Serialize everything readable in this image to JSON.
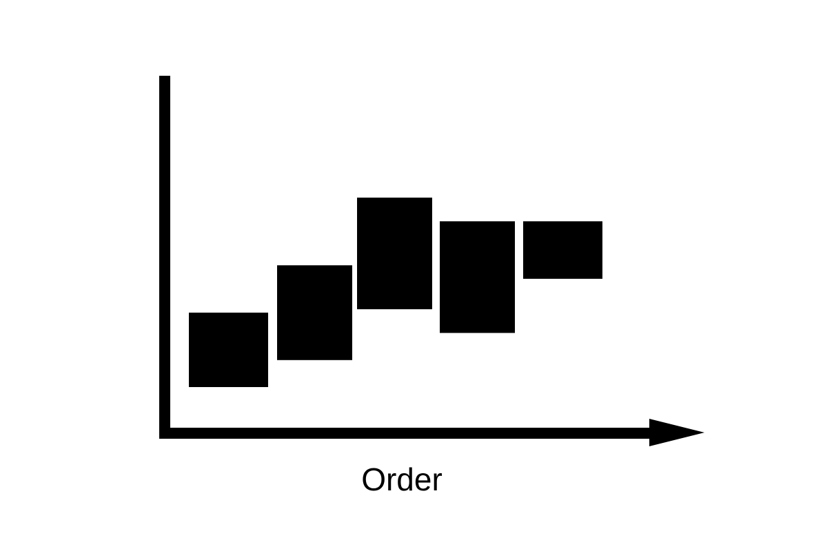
{
  "chart_data": {
    "type": "bar",
    "subtype": "floating-range",
    "title": "",
    "xlabel": "Order",
    "ylabel": "",
    "categories": [
      "",
      "",
      "",
      "",
      ""
    ],
    "series": [
      {
        "values": [
          {
            "low": 1.2,
            "high": 3.4
          },
          {
            "low": 2.0,
            "high": 4.8
          },
          {
            "low": 3.5,
            "high": 6.8
          },
          {
            "low": 2.8,
            "high": 6.1
          },
          {
            "low": 4.4,
            "high": 6.1
          }
        ]
      }
    ],
    "ylim": [
      0,
      10.4
    ],
    "grid": false,
    "legend": "none",
    "colors": {
      "bars": "#000000",
      "axes": "#000000",
      "background": "#ffffff"
    }
  }
}
